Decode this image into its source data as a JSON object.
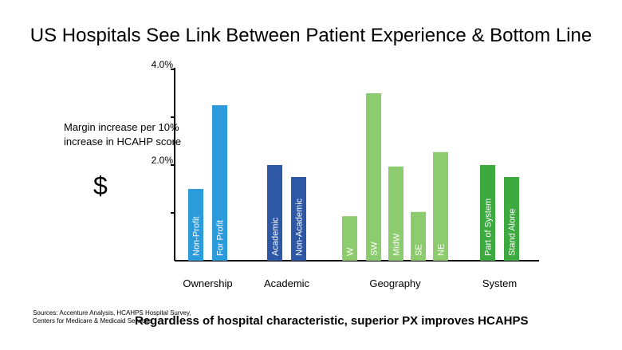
{
  "slide": {
    "title": "US Hospitals See Link Between Patient Experience & Bottom Line",
    "side_label": "Margin increase per 10% increase in HCAHP score",
    "symbol": "$",
    "sources": "Sources: Accenture Analysis, HCAHPS Hospital Survey, Centers for Medicare & Medicaid Services",
    "conclusion": "Regardless of hospital characteristic, superior PX improves HCAHPS"
  },
  "chart_data": {
    "type": "bar",
    "title": "",
    "xlabel": "",
    "ylabel": "",
    "ylim": [
      0,
      4.0
    ],
    "y_ticks": [
      {
        "value": 1.0,
        "label": ""
      },
      {
        "value": 2.0,
        "label": "2.0%"
      },
      {
        "value": 3.0,
        "label": ""
      },
      {
        "value": 4.0,
        "label": "4.0%"
      }
    ],
    "grid": false,
    "groups": [
      {
        "name": "Ownership",
        "bars": [
          {
            "label": "Non-Profit",
            "value": 1.5,
            "color": "#2B9BDB"
          },
          {
            "label": "For Profit",
            "value": 3.25,
            "color": "#2B9BDB"
          }
        ]
      },
      {
        "name": "Academic",
        "bars": [
          {
            "label": "Academic",
            "value": 2.0,
            "color": "#2E57A6"
          },
          {
            "label": "Non-Academic",
            "value": 1.75,
            "color": "#2E57A6"
          }
        ]
      },
      {
        "name": "Geography",
        "bars": [
          {
            "label": "W",
            "value": 0.93,
            "color": "#8CCB6E"
          },
          {
            "label": "SW",
            "value": 3.5,
            "color": "#8CCB6E"
          },
          {
            "label": "MidW",
            "value": 1.97,
            "color": "#8CCB6E"
          },
          {
            "label": "SE",
            "value": 1.02,
            "color": "#8CCB6E"
          },
          {
            "label": "NE",
            "value": 2.27,
            "color": "#8CCB6E"
          }
        ]
      },
      {
        "name": "System",
        "bars": [
          {
            "label": "Part of System",
            "value": 2.0,
            "color": "#3DAA3F"
          },
          {
            "label": "Stand Alone",
            "value": 1.75,
            "color": "#3DAA3F"
          }
        ]
      }
    ]
  }
}
